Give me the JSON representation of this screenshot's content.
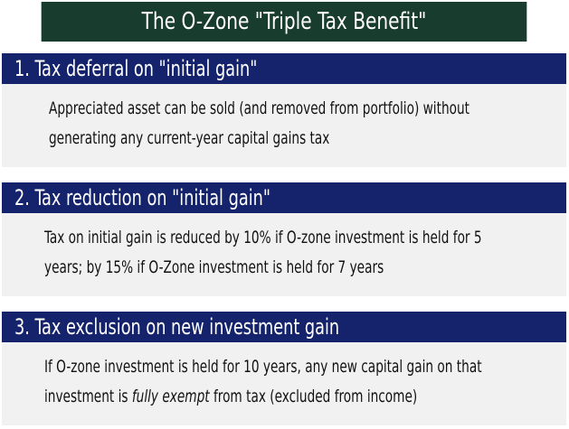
{
  "title": "The O-Zone \"Triple Tax Benefit\"",
  "sections": [
    {
      "heading": "1. Tax deferral on \"initial gain\"",
      "lines": [
        "Appreciated asset can be sold (and removed from portfolio) without",
        "generating any current-year capital gains tax"
      ]
    },
    {
      "heading": "2. Tax reduction on \"initial gain\"",
      "lines": [
        "Tax on initial  gain is reduced by 10% if O-zone investment is held for 5",
        "years; by 15% if O-Zone investment is held for 7 years"
      ]
    },
    {
      "heading": "3. Tax exclusion on new investment gain",
      "line1": "If O-zone investment is held for 10 years, any new capital gain on that",
      "line2_pre": "investment is ",
      "line2_emph": "fully exempt",
      "line2_post": " from tax (excluded from income)"
    }
  ],
  "colors": {
    "title_bg": "#183c2e",
    "header_bg": "#14236b",
    "body_bg": "#f1f1f1",
    "text_light": "#ffffff",
    "text_dark": "#111111"
  }
}
